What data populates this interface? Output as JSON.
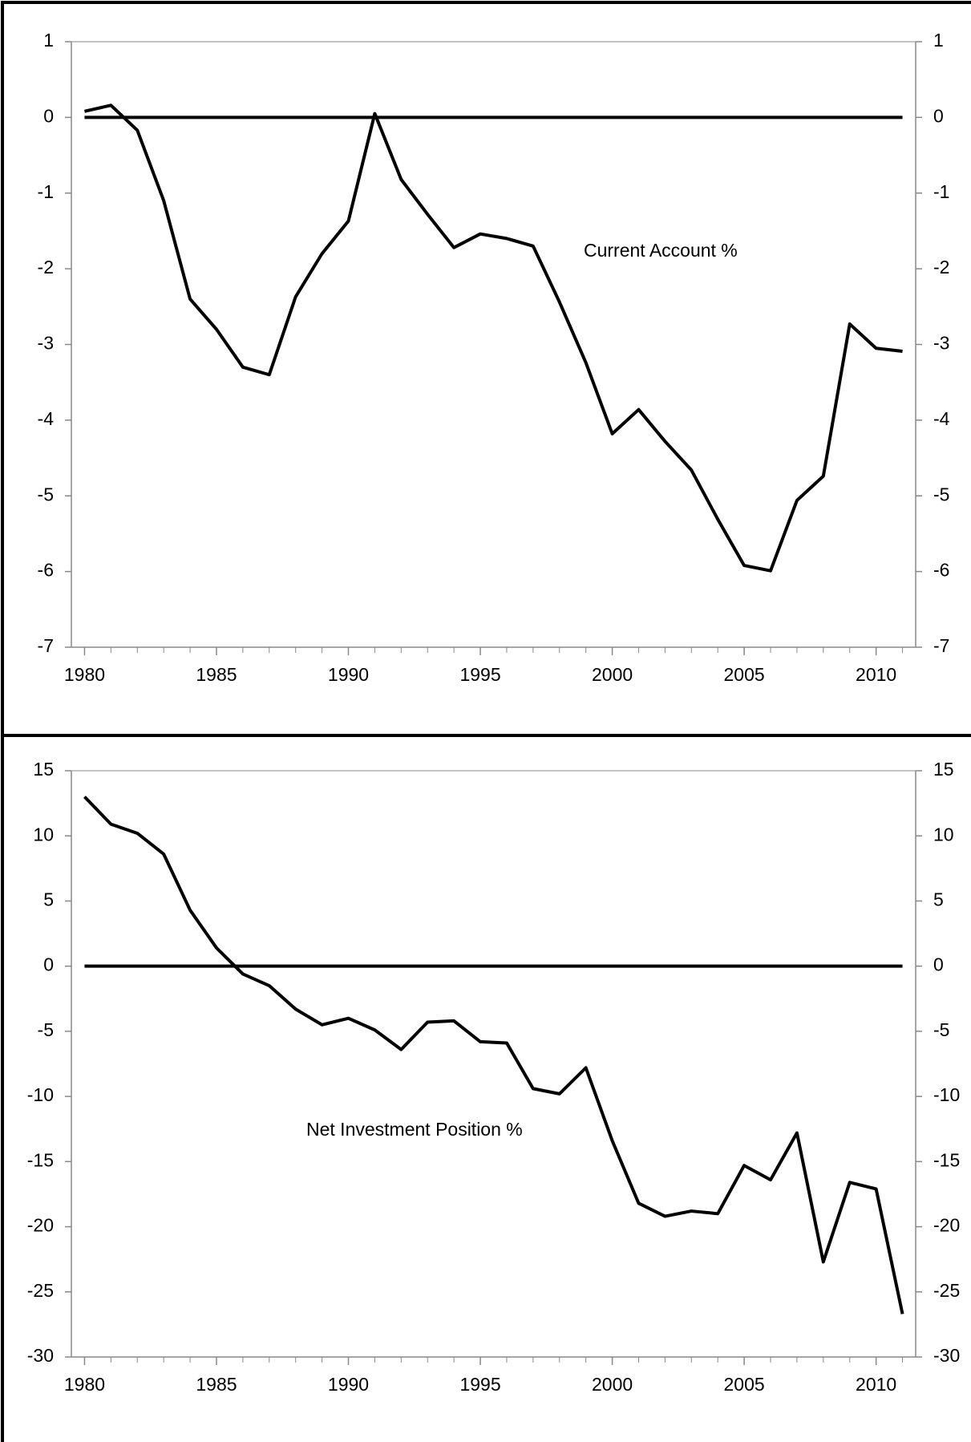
{
  "chart_data": [
    {
      "type": "line",
      "x": [
        1980,
        1981,
        1982,
        1983,
        1984,
        1985,
        1986,
        1987,
        1988,
        1989,
        1990,
        1991,
        1992,
        1993,
        1994,
        1995,
        1996,
        1997,
        1998,
        1999,
        2000,
        2001,
        2002,
        2003,
        2004,
        2005,
        2006,
        2007,
        2008,
        2009,
        2010,
        2011
      ],
      "series": [
        {
          "name": "Current Account %",
          "color": "#000000",
          "values": [
            0.08,
            0.16,
            -0.17,
            -1.1,
            -2.4,
            -2.8,
            -3.3,
            -3.4,
            -2.37,
            -1.8,
            -1.37,
            0.05,
            -0.82,
            -1.28,
            -1.72,
            -1.54,
            -1.6,
            -1.7,
            -2.44,
            -3.24,
            -4.18,
            -3.86,
            -4.28,
            -4.66,
            -5.31,
            -5.92,
            -5.99,
            -5.06,
            -4.74,
            -2.73,
            -3.05,
            -3.09
          ]
        }
      ],
      "reference_line": 0,
      "xlim": [
        1979.5,
        2011.5
      ],
      "xticks": [
        1980,
        1985,
        1990,
        1995,
        2000,
        2005,
        2010
      ],
      "ylim": [
        -7,
        1
      ],
      "yticks": [
        -7,
        -6,
        -5,
        -4,
        -3,
        -2,
        -1,
        0,
        1
      ],
      "y2lim": [
        -7,
        1
      ],
      "y2ticks": [
        -7,
        -6,
        -5,
        -4,
        -3,
        -2,
        -1,
        0,
        1
      ]
    },
    {
      "type": "line",
      "x": [
        1980,
        1981,
        1982,
        1983,
        1984,
        1985,
        1986,
        1987,
        1988,
        1989,
        1990,
        1991,
        1992,
        1993,
        1994,
        1995,
        1996,
        1997,
        1998,
        1999,
        2000,
        2001,
        2002,
        2003,
        2004,
        2005,
        2006,
        2007,
        2008,
        2009,
        2010,
        2011
      ],
      "series": [
        {
          "name": "Net Investment Position %",
          "color": "#000000",
          "values": [
            13,
            10.9,
            10.2,
            8.6,
            4.3,
            1.4,
            -0.6,
            -1.5,
            -3.3,
            -4.5,
            -4.0,
            -4.9,
            -6.4,
            -4.3,
            -4.2,
            -5.8,
            -5.9,
            -9.4,
            -9.8,
            -7.8,
            -13.4,
            -18.2,
            -19.2,
            -18.8,
            -19.0,
            -15.3,
            -16.4,
            -12.8,
            -22.7,
            -16.6,
            -17.1,
            -26.7
          ]
        }
      ],
      "reference_line": 0,
      "xlim": [
        1979.5,
        2011.5
      ],
      "xticks": [
        1980,
        1985,
        1990,
        1995,
        2000,
        2005,
        2010
      ],
      "ylim": [
        -30,
        15
      ],
      "yticks": [
        -30,
        -25,
        -20,
        -15,
        -10,
        -5,
        0,
        5,
        10,
        15
      ],
      "y2lim": [
        -30,
        15
      ],
      "y2ticks": [
        -30,
        -25,
        -20,
        -15,
        -10,
        -5,
        0,
        5,
        10,
        15
      ]
    }
  ]
}
